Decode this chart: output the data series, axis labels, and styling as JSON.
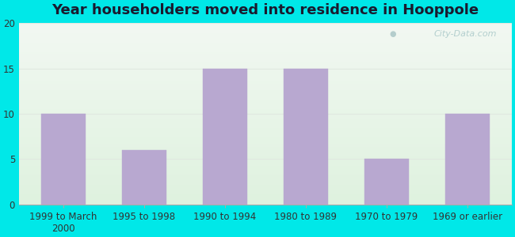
{
  "title": "Year householders moved into residence in Hooppole",
  "categories": [
    "1999 to March\n2000",
    "1995 to 1998",
    "1990 to 1994",
    "1980 to 1989",
    "1970 to 1979",
    "1969 or earlier"
  ],
  "values": [
    10,
    6,
    15,
    15,
    5,
    10
  ],
  "bar_color": "#b8a8d0",
  "bar_edge_color": "#b8a8d0",
  "ylim": [
    0,
    20
  ],
  "yticks": [
    0,
    5,
    10,
    15,
    20
  ],
  "background_outer": "#00e8e8",
  "background_inner_top": "#f2f8f2",
  "background_inner_bottom": "#dff2df",
  "grid_color": "#e0e8e0",
  "title_fontsize": 13,
  "tick_fontsize": 8.5,
  "watermark": "City-Data.com",
  "title_color": "#1a1a2e"
}
